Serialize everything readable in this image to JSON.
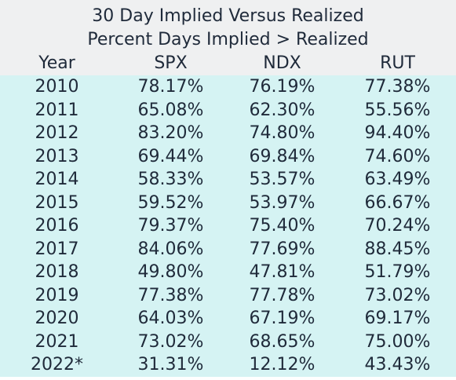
{
  "chart_data": {
    "type": "table",
    "title": "30 Day Implied Versus Realized",
    "subtitle": "Percent Days Implied > Realized",
    "columns": [
      "Year",
      "SPX",
      "NDX",
      "RUT"
    ],
    "rows": [
      [
        "2010",
        "78.17%",
        "76.19%",
        "77.38%"
      ],
      [
        "2011",
        "65.08%",
        "62.30%",
        "55.56%"
      ],
      [
        "2012",
        "83.20%",
        "74.80%",
        "94.40%"
      ],
      [
        "2013",
        "69.44%",
        "69.84%",
        "74.60%"
      ],
      [
        "2014",
        "58.33%",
        "53.57%",
        "63.49%"
      ],
      [
        "2015",
        "59.52%",
        "53.97%",
        "66.67%"
      ],
      [
        "2016",
        "79.37%",
        "75.40%",
        "70.24%"
      ],
      [
        "2017",
        "84.06%",
        "77.69%",
        "88.45%"
      ],
      [
        "2018",
        "49.80%",
        "47.81%",
        "51.79%"
      ],
      [
        "2019",
        "77.38%",
        "77.78%",
        "73.02%"
      ],
      [
        "2020",
        "64.03%",
        "67.19%",
        "69.17%"
      ],
      [
        "2021",
        "73.02%",
        "68.65%",
        "75.00%"
      ],
      [
        "2022*",
        "31.31%",
        "12.12%",
        "43.43%"
      ]
    ]
  },
  "colors": {
    "header_background": "#eff0f1",
    "body_background": "#d5f3f3",
    "text": "#1f2a3a"
  }
}
